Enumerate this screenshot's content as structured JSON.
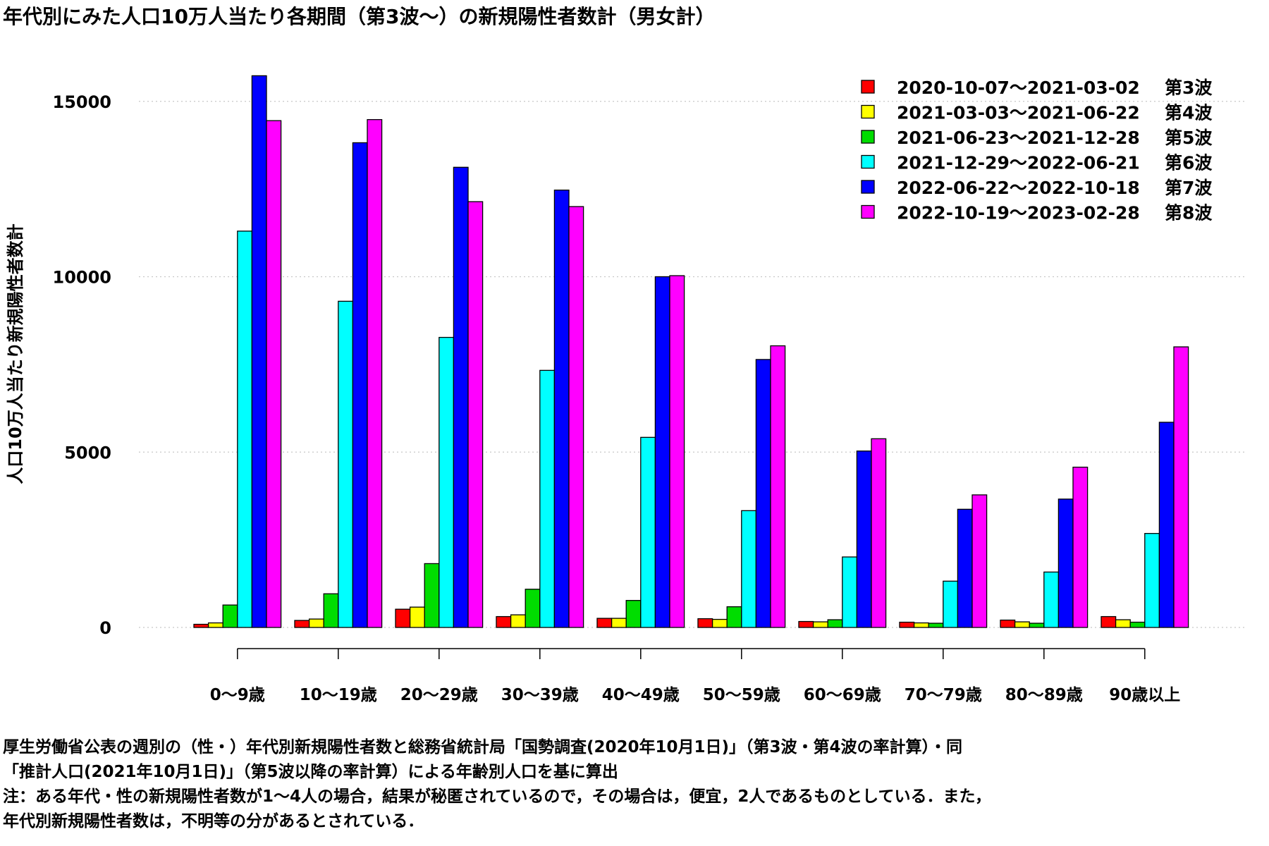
{
  "title": "年代別にみた人口10万人当たり各期間（第3波〜）の新規陽性者数計（男女計）",
  "notes": [
    "厚生労働省公表の週別の（性・）年代別新規陽性者数と総務省統計局「国勢調査(2020年10月1日)」（第3波・第4波の率計算）・同",
    "「推計人口(2021年10月1日)」（第5波以降の率計算）による年齢別人口を基に算出",
    "注：ある年代・性の新規陽性者数が1〜4人の場合，結果が秘匿されているので，その場合は，便宜，2人であるものとしている．また，",
    "年代別新規陽性者数は，不明等の分があるとされている．"
  ],
  "chart_data": {
    "type": "bar",
    "title": "年代別にみた人口10万人当たり各期間（第3波〜）の新規陽性者数計（男女計）",
    "xlabel": "",
    "ylabel": "人口10万人当たり新規陽性者数計",
    "ylim": [
      0,
      16000
    ],
    "yticks": [
      0,
      5000,
      10000,
      15000
    ],
    "grid": "horizontal dotted",
    "legend_position": "top-right",
    "categories": [
      "0〜9歳",
      "10〜19歳",
      "20〜29歳",
      "30〜39歳",
      "40〜49歳",
      "50〜59歳",
      "60〜69歳",
      "70〜79歳",
      "80〜89歳",
      "90歳以上"
    ],
    "series": [
      {
        "name": "2020-10-07〜2021-03-02　第3波",
        "color": "#ff0000",
        "values": [
          90,
          200,
          520,
          310,
          260,
          250,
          170,
          150,
          210,
          310
        ]
      },
      {
        "name": "2021-03-03〜2021-06-22　第4波",
        "color": "#ffff00",
        "values": [
          130,
          240,
          580,
          360,
          260,
          230,
          160,
          130,
          160,
          220
        ]
      },
      {
        "name": "2021-06-23〜2021-12-28　第5波",
        "color": "#00dd00",
        "values": [
          640,
          960,
          1820,
          1090,
          770,
          590,
          220,
          120,
          120,
          150
        ]
      },
      {
        "name": "2021-12-29〜2022-06-21　第6波",
        "color": "#00ffff",
        "values": [
          11300,
          9300,
          8270,
          7330,
          5420,
          3330,
          2010,
          1320,
          1580,
          2680
        ]
      },
      {
        "name": "2022-06-22〜2022-10-18　第7波",
        "color": "#0000ff",
        "values": [
          15730,
          13820,
          13120,
          12470,
          10000,
          7640,
          5030,
          3370,
          3660,
          5850
        ]
      },
      {
        "name": "2022-10-19〜2023-02-28　第8波",
        "color": "#ff00ff",
        "values": [
          14450,
          14480,
          12140,
          12000,
          10030,
          8030,
          5380,
          3780,
          4570,
          8000
        ]
      }
    ]
  }
}
